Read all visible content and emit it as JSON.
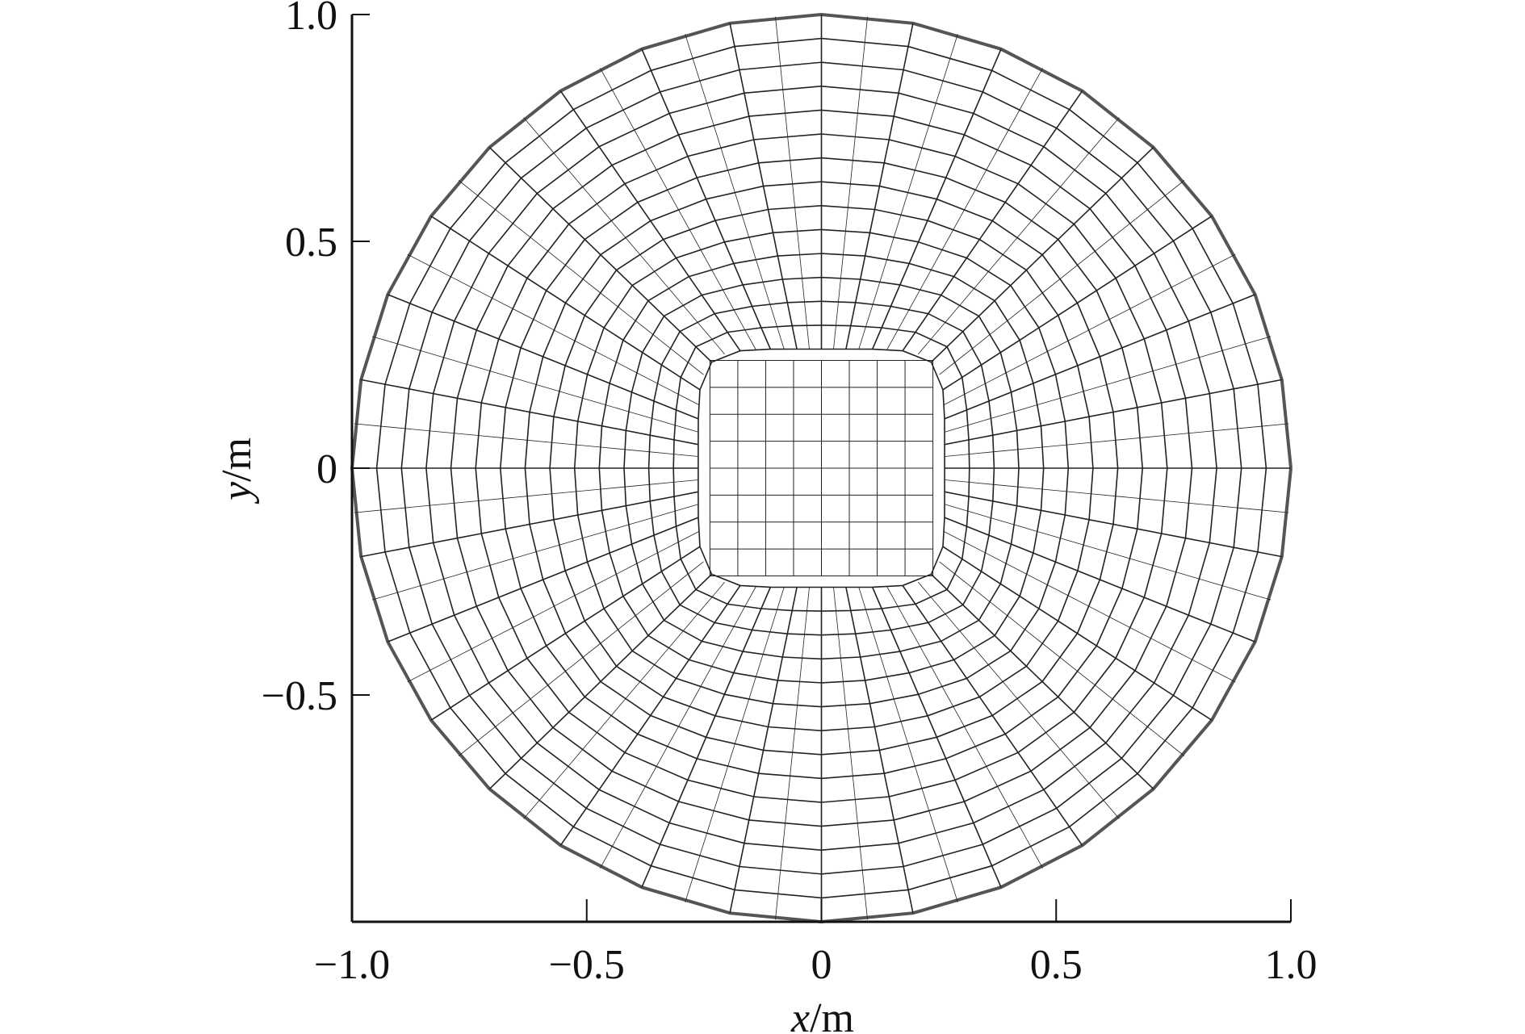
{
  "chart_data": {
    "type": "mesh",
    "title": "",
    "xlabel": "x/m",
    "ylabel": "y/m",
    "xlabel_parts": {
      "var": "x",
      "unit": "/m"
    },
    "ylabel_parts": {
      "var": "y",
      "unit": "/m"
    },
    "xlim": [
      -1.0,
      1.0
    ],
    "ylim": [
      -1.0,
      1.0
    ],
    "xticks": [
      -1.0,
      -0.5,
      0,
      0.5,
      1.0
    ],
    "yticks": [
      -0.5,
      0,
      0.5,
      1.0
    ],
    "xtick_labels": [
      "−1.0",
      "−0.5",
      "0",
      "0.5",
      "1.0"
    ],
    "ytick_labels": [
      "−0.5",
      "0",
      "0.5",
      "1.0"
    ],
    "mesh": {
      "domain": "circle",
      "radius": 1.0,
      "center": [
        0,
        0
      ],
      "core_half_width": 0.25,
      "radial_spokes": 32,
      "rings": 14,
      "core_divisions": 8
    },
    "colors": {
      "mesh": "#222222",
      "boundary": "#555555",
      "axes": "#111111"
    },
    "grid": false,
    "legend": "none"
  }
}
